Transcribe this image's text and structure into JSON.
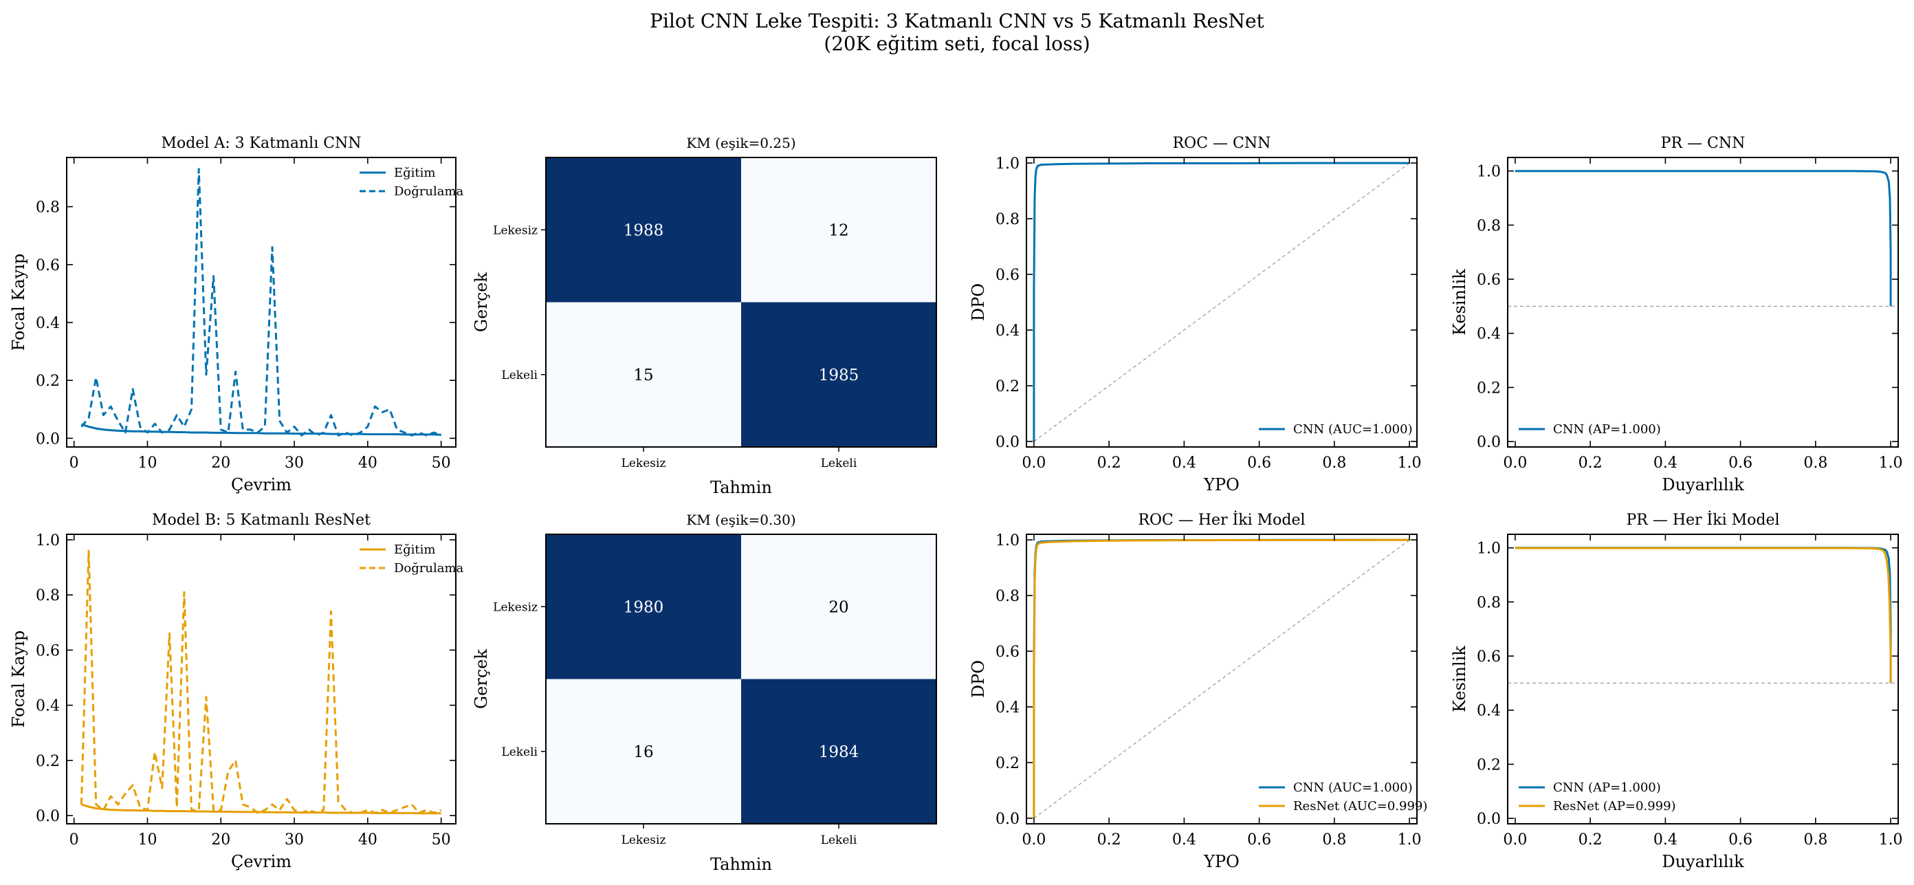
{
  "figure": {
    "title_line1": "Pilot CNN Leke Tespiti: 3 Katmanlı CNN vs 5 Katmanlı ResNet",
    "title_line2": "(20K eğitim seti, focal loss)"
  },
  "colors": {
    "cnn": "#0072b2",
    "resnet": "#e69f00",
    "cm_dark": "#08306b",
    "cm_light": "#f7fbff",
    "reference": "#999999"
  },
  "chart_data": [
    {
      "id": "loss_a",
      "type": "line",
      "title": "Model A: 3 Katmanlı CNN",
      "xlabel": "Çevrim",
      "ylabel": "Focal Kayıp",
      "xlim": [
        -1,
        52
      ],
      "ylim": [
        -0.03,
        0.97
      ],
      "xticks": [
        0,
        10,
        20,
        30,
        40,
        50
      ],
      "xtick_labels": [
        "0",
        "10",
        "20",
        "30",
        "40",
        "50"
      ],
      "yticks": [
        0,
        0.2,
        0.4,
        0.6,
        0.8
      ],
      "ytick_labels": [
        "0.0",
        "0.2",
        "0.4",
        "0.6",
        "0.8"
      ],
      "legend_position": "top-right",
      "series": [
        {
          "name": "Eğitim",
          "color_key": "cnn",
          "style": "solid",
          "x": [
            1,
            2,
            3,
            4,
            5,
            6,
            7,
            8,
            9,
            10,
            11,
            12,
            13,
            14,
            15,
            16,
            17,
            18,
            19,
            20,
            21,
            22,
            23,
            24,
            25,
            26,
            27,
            28,
            29,
            30,
            31,
            32,
            33,
            34,
            35,
            36,
            37,
            38,
            39,
            40,
            41,
            42,
            43,
            44,
            45,
            46,
            47,
            48,
            49,
            50
          ],
          "y": [
            0.048,
            0.04,
            0.034,
            0.03,
            0.028,
            0.026,
            0.025,
            0.024,
            0.024,
            0.023,
            0.023,
            0.022,
            0.022,
            0.021,
            0.021,
            0.02,
            0.02,
            0.02,
            0.019,
            0.019,
            0.019,
            0.018,
            0.018,
            0.018,
            0.018,
            0.017,
            0.017,
            0.017,
            0.017,
            0.016,
            0.016,
            0.016,
            0.016,
            0.016,
            0.015,
            0.015,
            0.015,
            0.015,
            0.015,
            0.014,
            0.014,
            0.014,
            0.014,
            0.014,
            0.013,
            0.013,
            0.013,
            0.013,
            0.013,
            0.012
          ]
        },
        {
          "name": "Doğrulama",
          "color_key": "cnn",
          "style": "dashed",
          "x": [
            1,
            2,
            3,
            4,
            5,
            6,
            7,
            8,
            9,
            10,
            11,
            12,
            13,
            14,
            15,
            16,
            17,
            18,
            19,
            20,
            21,
            22,
            23,
            24,
            25,
            26,
            27,
            28,
            29,
            30,
            31,
            32,
            33,
            34,
            35,
            36,
            37,
            38,
            39,
            40,
            41,
            42,
            43,
            44,
            45,
            46,
            47,
            48,
            49,
            50
          ],
          "y": [
            0.04,
            0.07,
            0.21,
            0.08,
            0.11,
            0.06,
            0.02,
            0.17,
            0.04,
            0.02,
            0.05,
            0.02,
            0.03,
            0.08,
            0.04,
            0.1,
            0.93,
            0.22,
            0.56,
            0.03,
            0.02,
            0.23,
            0.03,
            0.03,
            0.02,
            0.04,
            0.66,
            0.06,
            0.02,
            0.04,
            0.01,
            0.03,
            0.01,
            0.02,
            0.08,
            0.01,
            0.02,
            0.01,
            0.02,
            0.04,
            0.11,
            0.09,
            0.1,
            0.03,
            0.02,
            0.01,
            0.02,
            0.01,
            0.02,
            0.01
          ]
        }
      ]
    },
    {
      "id": "cm_a",
      "type": "heatmap",
      "title": "KM (eşik=0.25)",
      "xlabel": "Tahmin",
      "ylabel": "Gerçek",
      "x_categories": [
        "Lekesiz",
        "Lekeli"
      ],
      "y_categories": [
        "Lekesiz",
        "Lekeli"
      ],
      "values": [
        [
          1988,
          12
        ],
        [
          15,
          1985
        ]
      ]
    },
    {
      "id": "roc_a",
      "type": "line",
      "title": "ROC — CNN",
      "xlabel": "YPO",
      "ylabel": "DPO",
      "xlim": [
        -0.02,
        1.02
      ],
      "ylim": [
        -0.02,
        1.02
      ],
      "xticks": [
        0,
        0.2,
        0.4,
        0.6,
        0.8,
        1.0
      ],
      "xtick_labels": [
        "0.0",
        "0.2",
        "0.4",
        "0.6",
        "0.8",
        "1.0"
      ],
      "yticks": [
        0,
        0.2,
        0.4,
        0.6,
        0.8,
        1.0
      ],
      "ytick_labels": [
        "0.0",
        "0.2",
        "0.4",
        "0.6",
        "0.8",
        "1.0"
      ],
      "legend_position": "bottom-right",
      "reference_line": "diagonal",
      "series": [
        {
          "name": "CNN (AUC=1.000)",
          "color_key": "cnn",
          "style": "solid",
          "x": [
            0,
            0,
            0.002,
            0.004,
            0.006,
            0.008,
            0.01,
            0.015,
            0.02,
            0.04,
            0.06,
            0.1,
            0.2,
            0.3,
            0.5,
            0.7,
            1.0
          ],
          "y": [
            0,
            0.55,
            0.88,
            0.95,
            0.975,
            0.985,
            0.99,
            0.992,
            0.994,
            0.995,
            0.996,
            0.997,
            0.998,
            0.999,
            0.999,
            1.0,
            1.0
          ]
        }
      ]
    },
    {
      "id": "pr_a",
      "type": "line",
      "title": "PR — CNN",
      "xlabel": "Duyarlılık",
      "ylabel": "Kesinlik",
      "xlim": [
        -0.02,
        1.02
      ],
      "ylim": [
        -0.02,
        1.05
      ],
      "xticks": [
        0,
        0.2,
        0.4,
        0.6,
        0.8,
        1.0
      ],
      "xtick_labels": [
        "0.0",
        "0.2",
        "0.4",
        "0.6",
        "0.8",
        "1.0"
      ],
      "yticks": [
        0,
        0.2,
        0.4,
        0.6,
        0.8,
        1.0
      ],
      "ytick_labels": [
        "0.0",
        "0.2",
        "0.4",
        "0.6",
        "0.8",
        "1.0"
      ],
      "legend_position": "bottom-left",
      "reference_line": "baseline-0.5",
      "series": [
        {
          "name": "CNN (AP=1.000)",
          "color_key": "cnn",
          "style": "solid",
          "x": [
            0,
            0.5,
            0.9,
            0.96,
            0.975,
            0.985,
            0.99,
            0.995,
            0.998,
            1.0,
            1.0
          ],
          "y": [
            1.0,
            1.0,
            1.0,
            0.999,
            0.997,
            0.993,
            0.985,
            0.96,
            0.9,
            0.7,
            0.5
          ]
        }
      ]
    },
    {
      "id": "loss_b",
      "type": "line",
      "title": "Model B: 5 Katmanlı ResNet",
      "xlabel": "Çevrim",
      "ylabel": "Focal Kayıp",
      "xlim": [
        -1,
        52
      ],
      "ylim": [
        -0.03,
        1.02
      ],
      "xticks": [
        0,
        10,
        20,
        30,
        40,
        50
      ],
      "xtick_labels": [
        "0",
        "10",
        "20",
        "30",
        "40",
        "50"
      ],
      "yticks": [
        0,
        0.2,
        0.4,
        0.6,
        0.8,
        1.0
      ],
      "ytick_labels": [
        "0.0",
        "0.2",
        "0.4",
        "0.6",
        "0.8",
        "1.0"
      ],
      "legend_position": "top-right",
      "series": [
        {
          "name": "Eğitim",
          "color_key": "resnet",
          "style": "solid",
          "x": [
            1,
            2,
            3,
            4,
            5,
            6,
            7,
            8,
            9,
            10,
            11,
            12,
            13,
            14,
            15,
            16,
            17,
            18,
            19,
            20,
            21,
            22,
            23,
            24,
            25,
            26,
            27,
            28,
            29,
            30,
            31,
            32,
            33,
            34,
            35,
            36,
            37,
            38,
            39,
            40,
            41,
            42,
            43,
            44,
            45,
            46,
            47,
            48,
            49,
            50
          ],
          "y": [
            0.04,
            0.032,
            0.026,
            0.023,
            0.021,
            0.02,
            0.019,
            0.019,
            0.018,
            0.018,
            0.017,
            0.017,
            0.016,
            0.016,
            0.016,
            0.015,
            0.015,
            0.015,
            0.014,
            0.014,
            0.014,
            0.013,
            0.013,
            0.013,
            0.013,
            0.012,
            0.012,
            0.012,
            0.012,
            0.011,
            0.011,
            0.011,
            0.011,
            0.011,
            0.01,
            0.01,
            0.01,
            0.01,
            0.01,
            0.01,
            0.009,
            0.009,
            0.009,
            0.009,
            0.009,
            0.009,
            0.008,
            0.008,
            0.008,
            0.008
          ]
        },
        {
          "name": "Doğrulama",
          "color_key": "resnet",
          "style": "dashed",
          "x": [
            1,
            2,
            3,
            4,
            5,
            6,
            7,
            8,
            9,
            10,
            11,
            12,
            13,
            14,
            15,
            16,
            17,
            18,
            19,
            20,
            21,
            22,
            23,
            24,
            25,
            26,
            27,
            28,
            29,
            30,
            31,
            32,
            33,
            34,
            35,
            36,
            37,
            38,
            39,
            40,
            41,
            42,
            43,
            44,
            45,
            46,
            47,
            48,
            49,
            50
          ],
          "y": [
            0.04,
            0.96,
            0.04,
            0.02,
            0.07,
            0.04,
            0.08,
            0.11,
            0.03,
            0.02,
            0.23,
            0.1,
            0.66,
            0.03,
            0.81,
            0.02,
            0.02,
            0.43,
            0.02,
            0.02,
            0.16,
            0.2,
            0.04,
            0.03,
            0.01,
            0.02,
            0.04,
            0.02,
            0.06,
            0.02,
            0.01,
            0.02,
            0.01,
            0.02,
            0.74,
            0.05,
            0.02,
            0.01,
            0.01,
            0.02,
            0.01,
            0.02,
            0.01,
            0.02,
            0.03,
            0.04,
            0.01,
            0.02,
            0.01,
            0.02
          ]
        }
      ]
    },
    {
      "id": "cm_b",
      "type": "heatmap",
      "title": "KM (eşik=0.30)",
      "xlabel": "Tahmin",
      "ylabel": "Gerçek",
      "x_categories": [
        "Lekesiz",
        "Lekeli"
      ],
      "y_categories": [
        "Lekesiz",
        "Lekeli"
      ],
      "values": [
        [
          1980,
          20
        ],
        [
          16,
          1984
        ]
      ]
    },
    {
      "id": "roc_b",
      "type": "line",
      "title": "ROC — Her İki Model",
      "xlabel": "YPO",
      "ylabel": "DPO",
      "xlim": [
        -0.02,
        1.02
      ],
      "ylim": [
        -0.02,
        1.02
      ],
      "xticks": [
        0,
        0.2,
        0.4,
        0.6,
        0.8,
        1.0
      ],
      "xtick_labels": [
        "0.0",
        "0.2",
        "0.4",
        "0.6",
        "0.8",
        "1.0"
      ],
      "yticks": [
        0,
        0.2,
        0.4,
        0.6,
        0.8,
        1.0
      ],
      "ytick_labels": [
        "0.0",
        "0.2",
        "0.4",
        "0.6",
        "0.8",
        "1.0"
      ],
      "legend_position": "bottom-right",
      "reference_line": "diagonal",
      "series": [
        {
          "name": "CNN (AUC=1.000)",
          "color_key": "cnn",
          "style": "solid",
          "x": [
            0,
            0,
            0.002,
            0.004,
            0.006,
            0.008,
            0.01,
            0.015,
            0.02,
            0.04,
            0.06,
            0.1,
            0.2,
            0.3,
            0.5,
            0.7,
            1.0
          ],
          "y": [
            0,
            0.55,
            0.88,
            0.95,
            0.975,
            0.985,
            0.99,
            0.992,
            0.994,
            0.995,
            0.996,
            0.997,
            0.998,
            0.999,
            0.999,
            1.0,
            1.0
          ]
        },
        {
          "name": "ResNet (AUC=0.999)",
          "color_key": "resnet",
          "style": "solid",
          "x": [
            0,
            0,
            0.002,
            0.004,
            0.006,
            0.008,
            0.01,
            0.015,
            0.02,
            0.04,
            0.06,
            0.1,
            0.2,
            0.3,
            0.5,
            0.7,
            1.0
          ],
          "y": [
            0,
            0.5,
            0.85,
            0.93,
            0.965,
            0.978,
            0.984,
            0.988,
            0.99,
            0.992,
            0.993,
            0.995,
            0.997,
            0.998,
            0.999,
            0.999,
            1.0
          ]
        }
      ]
    },
    {
      "id": "pr_b",
      "type": "line",
      "title": "PR — Her İki Model",
      "xlabel": "Duyarlılık",
      "ylabel": "Kesinlik",
      "xlim": [
        -0.02,
        1.02
      ],
      "ylim": [
        -0.02,
        1.05
      ],
      "xticks": [
        0,
        0.2,
        0.4,
        0.6,
        0.8,
        1.0
      ],
      "xtick_labels": [
        "0.0",
        "0.2",
        "0.4",
        "0.6",
        "0.8",
        "1.0"
      ],
      "yticks": [
        0,
        0.2,
        0.4,
        0.6,
        0.8,
        1.0
      ],
      "ytick_labels": [
        "0.0",
        "0.2",
        "0.4",
        "0.6",
        "0.8",
        "1.0"
      ],
      "legend_position": "bottom-left",
      "reference_line": "baseline-0.5",
      "series": [
        {
          "name": "CNN (AP=1.000)",
          "color_key": "cnn",
          "style": "solid",
          "x": [
            0,
            0.5,
            0.9,
            0.96,
            0.975,
            0.985,
            0.99,
            0.995,
            0.998,
            1.0,
            1.0
          ],
          "y": [
            1.0,
            1.0,
            1.0,
            0.999,
            0.997,
            0.993,
            0.985,
            0.96,
            0.9,
            0.7,
            0.5
          ]
        },
        {
          "name": "ResNet (AP=0.999)",
          "color_key": "resnet",
          "style": "solid",
          "x": [
            0,
            0.5,
            0.9,
            0.95,
            0.97,
            0.98,
            0.985,
            0.99,
            0.994,
            0.997,
            1.0,
            1.0
          ],
          "y": [
            0.999,
            0.999,
            0.999,
            0.998,
            0.996,
            0.99,
            0.98,
            0.95,
            0.9,
            0.8,
            0.6,
            0.5
          ]
        }
      ]
    }
  ]
}
